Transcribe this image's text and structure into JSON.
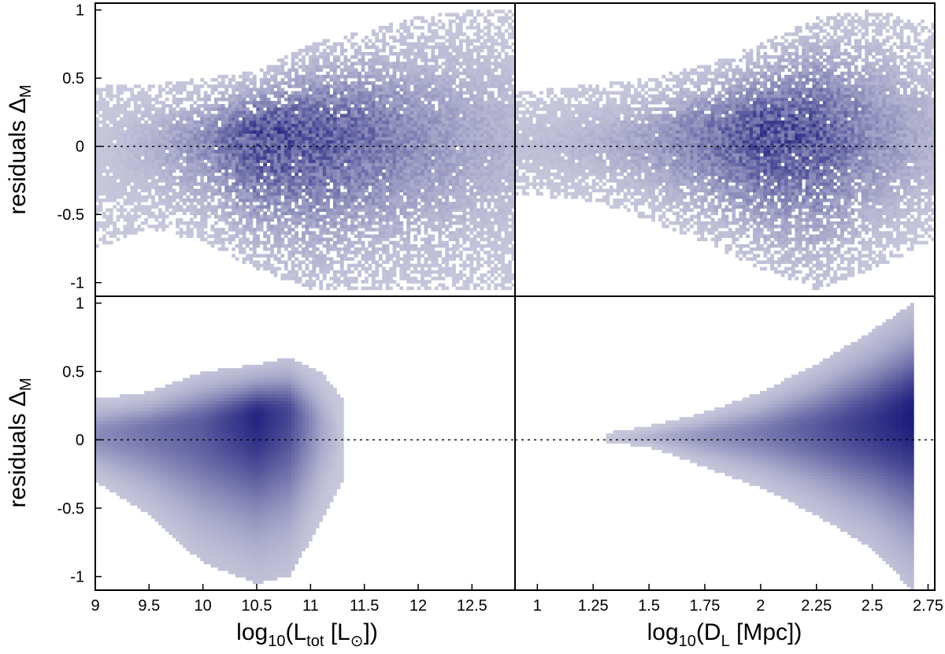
{
  "chart_data": [
    {
      "type": "heatmap",
      "panel": "top-left",
      "xlim": [
        9,
        12.9
      ],
      "ylim": [
        -1.1,
        1.05
      ],
      "yticks": [
        "1",
        "0.5",
        "0",
        "-0.5",
        "-1"
      ],
      "reference_line": {
        "y": 0,
        "style": "dotted"
      },
      "density_profile": [
        {
          "x": 9.0,
          "center": 0.0,
          "upper": 0.45,
          "lower": -0.75,
          "peak": 0.0
        },
        {
          "x": 9.5,
          "center": 0.03,
          "upper": 0.45,
          "lower": -0.6,
          "peak": 0.12
        },
        {
          "x": 10.0,
          "center": 0.06,
          "upper": 0.5,
          "lower": -0.7,
          "peak": 0.35
        },
        {
          "x": 10.5,
          "center": 0.1,
          "upper": 0.55,
          "lower": -0.9,
          "peak": 0.75
        },
        {
          "x": 11.0,
          "center": 0.1,
          "upper": 0.75,
          "lower": -1.05,
          "peak": 0.7
        },
        {
          "x": 11.5,
          "center": 0.1,
          "upper": 0.85,
          "lower": -1.05,
          "peak": 0.55
        },
        {
          "x": 12.0,
          "center": 0.08,
          "upper": 0.95,
          "lower": -1.05,
          "peak": 0.35
        },
        {
          "x": 12.5,
          "center": 0.05,
          "upper": 1.0,
          "lower": -1.05,
          "peak": 0.2
        },
        {
          "x": 12.9,
          "center": 0.05,
          "upper": 1.0,
          "lower": -1.05,
          "peak": 0.12
        }
      ]
    },
    {
      "type": "heatmap",
      "panel": "top-right",
      "xlim": [
        0.9,
        2.78
      ],
      "ylim": [
        -1.1,
        1.05
      ],
      "reference_line": {
        "y": 0,
        "style": "dotted"
      },
      "density_profile": [
        {
          "x": 0.9,
          "center": 0.0,
          "upper": 0.4,
          "lower": -0.35,
          "peak": 0.05
        },
        {
          "x": 1.25,
          "center": 0.02,
          "upper": 0.45,
          "lower": -0.4,
          "peak": 0.12
        },
        {
          "x": 1.5,
          "center": 0.05,
          "upper": 0.5,
          "lower": -0.55,
          "peak": 0.25
        },
        {
          "x": 1.75,
          "center": 0.08,
          "upper": 0.6,
          "lower": -0.7,
          "peak": 0.5
        },
        {
          "x": 2.0,
          "center": 0.1,
          "upper": 0.75,
          "lower": -0.9,
          "peak": 0.75
        },
        {
          "x": 2.25,
          "center": 0.1,
          "upper": 0.95,
          "lower": -1.05,
          "peak": 0.7
        },
        {
          "x": 2.5,
          "center": 0.08,
          "upper": 1.0,
          "lower": -0.9,
          "peak": 0.35
        },
        {
          "x": 2.78,
          "center": 0.05,
          "upper": 0.9,
          "lower": -0.7,
          "peak": 0.12
        }
      ]
    },
    {
      "type": "heatmap",
      "panel": "bottom-left",
      "xlim": [
        9,
        12.9
      ],
      "xticks": [
        "9",
        "9.5",
        "10",
        "10.5",
        "11",
        "11.5",
        "12",
        "12.5"
      ],
      "ylim": [
        -1.1,
        1.05
      ],
      "yticks": [
        "1",
        "0.5",
        "0",
        "-0.5",
        "-1"
      ],
      "reference_line": {
        "y": 0,
        "style": "dotted"
      },
      "density_profile": [
        {
          "x": 9.0,
          "center": 0.04,
          "upper": 0.3,
          "lower": -0.3,
          "peak": 0.35
        },
        {
          "x": 9.5,
          "center": 0.07,
          "upper": 0.35,
          "lower": -0.55,
          "peak": 0.5
        },
        {
          "x": 10.0,
          "center": 0.1,
          "upper": 0.5,
          "lower": -0.9,
          "peak": 0.65
        },
        {
          "x": 10.5,
          "center": 0.18,
          "upper": 0.55,
          "lower": -1.05,
          "peak": 0.95
        },
        {
          "x": 10.8,
          "center": 0.2,
          "upper": 0.6,
          "lower": -1.0,
          "peak": 0.75
        },
        {
          "x": 11.1,
          "center": 0.1,
          "upper": 0.5,
          "lower": -0.6,
          "peak": 0.2
        },
        {
          "x": 11.3,
          "center": 0.0,
          "upper": 0.3,
          "lower": -0.3,
          "peak": 0.0
        }
      ]
    },
    {
      "type": "heatmap",
      "panel": "bottom-right",
      "xlim": [
        0.9,
        2.78
      ],
      "xticks": [
        "1",
        "1.25",
        "1.5",
        "1.75",
        "2",
        "2.25",
        "2.5",
        "2.75"
      ],
      "ylim": [
        -1.1,
        1.05
      ],
      "reference_line": {
        "y": 0,
        "style": "dotted"
      },
      "density_profile": [
        {
          "x": 1.3,
          "center": 0.0,
          "upper": 0.05,
          "lower": -0.02,
          "peak": 0.0
        },
        {
          "x": 1.5,
          "center": 0.02,
          "upper": 0.1,
          "lower": -0.05,
          "peak": 0.12
        },
        {
          "x": 1.75,
          "center": 0.03,
          "upper": 0.2,
          "lower": -0.2,
          "peak": 0.3
        },
        {
          "x": 2.0,
          "center": 0.05,
          "upper": 0.35,
          "lower": -0.35,
          "peak": 0.45
        },
        {
          "x": 2.25,
          "center": 0.08,
          "upper": 0.55,
          "lower": -0.55,
          "peak": 0.65
        },
        {
          "x": 2.5,
          "center": 0.12,
          "upper": 0.8,
          "lower": -0.8,
          "peak": 0.85
        },
        {
          "x": 2.68,
          "center": 0.18,
          "upper": 1.0,
          "lower": -1.1,
          "peak": 1.0
        }
      ]
    }
  ],
  "axes": {
    "ylabel": {
      "main": "residuals Δ",
      "sub": "M"
    },
    "xlabel_left": {
      "prefix": "log",
      "sub1": "10",
      "mid": "(L",
      "sub2": "tot",
      "suffix": " [L",
      "sub3": "⊙",
      "end": "])"
    },
    "xlabel_right": {
      "prefix": "log",
      "sub1": "10",
      "mid": "(D",
      "sub2": "L",
      "suffix": " [Mpc])"
    }
  },
  "colors": {
    "dense": "#1c1c7c",
    "sparse": "#c8c8dc",
    "frame": "#000000"
  }
}
